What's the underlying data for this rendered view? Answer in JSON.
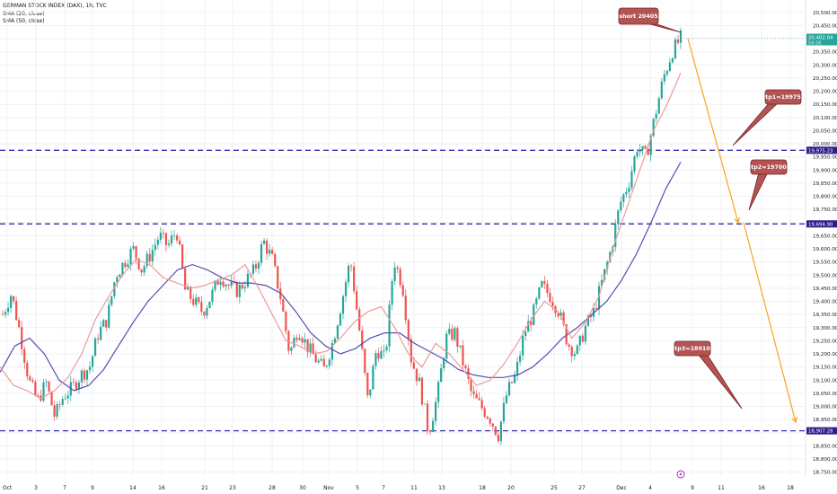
{
  "header": {
    "title": "GERMAN STOCK INDEX (DAX), 1h, TVC",
    "indicator1": "SMA (20, close)",
    "indicator2": "SMA (50, close)"
  },
  "colors": {
    "up": "#26a69a",
    "down": "#ef5350",
    "sma20": "#ef9a9a",
    "sma50": "#5c49b0",
    "level_line": "#3a2db0",
    "arrow": "#f5a623",
    "callout_fill": "#b35454",
    "callout_stroke": "#7a1f1f",
    "price_tag": "#26a69a",
    "level_tag": "#2e1f8a",
    "grid": "#eef0f3"
  },
  "price_tag": {
    "value": "20,402.04",
    "countdown": "59:26"
  },
  "level_tags": [
    "19,975.23",
    "19,694.90",
    "18,907.28"
  ],
  "callouts": {
    "short": "short 20405",
    "tp1": "tp1=19975",
    "tp2": "tp2=19700",
    "tp3": "tp3=18910"
  },
  "event_icon": "lightning-icon",
  "chart_data": {
    "type": "candlestick",
    "yaxis": {
      "ticks": [
        "20,500.00",
        "20,450.00",
        "20,400.00",
        "20,350.00",
        "20,300.00",
        "20,250.00",
        "20,200.00",
        "20,150.00",
        "20,100.00",
        "20,050.00",
        "20,000.00",
        "19,950.00",
        "19,900.00",
        "19,850.00",
        "19,800.00",
        "19,750.00",
        "19,700.00",
        "19,650.00",
        "19,600.00",
        "19,550.00",
        "19,500.00",
        "19,450.00",
        "19,400.00",
        "19,350.00",
        "19,300.00",
        "19,250.00",
        "19,200.00",
        "19,150.00",
        "19,100.00",
        "19,050.00",
        "19,000.00",
        "18,950.00",
        "18,900.00",
        "18,850.00",
        "18,800.00",
        "18,750.00"
      ],
      "range": [
        18735,
        20520
      ]
    },
    "xaxis": {
      "ticks": [
        "Oct",
        "3",
        "7",
        "9",
        "14",
        "16",
        "21",
        "23",
        "28",
        "30",
        "Nov",
        "5",
        "7",
        "11",
        "13",
        "18",
        "20",
        "25",
        "27",
        "Dec",
        "4",
        "9",
        "11",
        "16",
        "18"
      ]
    },
    "levels": [
      19975.23,
      19694.9,
      18907.28
    ],
    "path": [
      19350,
      19430,
      19280,
      19100,
      19020,
      19090,
      18960,
      19040,
      19070,
      19120,
      19150,
      19280,
      19330,
      19500,
      19550,
      19600,
      19520,
      19580,
      19650,
      19610,
      19670,
      19440,
      19400,
      19360,
      19420,
      19500,
      19460,
      19440,
      19480,
      19520,
      19630,
      19560,
      19410,
      19200,
      19300,
      19230,
      19180,
      19140,
      19250,
      19400,
      19560,
      19300,
      19020,
      19220,
      19180,
      19560,
      19460,
      19180,
      19080,
      18900,
      19040,
      19260,
      19280,
      19160,
      19040,
      19000,
      18960,
      18890,
      19050,
      19120,
      19280,
      19350,
      19460,
      19420,
      19360,
      19240,
      19200,
      19300,
      19360,
      19480,
      19600,
      19770,
      19850,
      19990,
      19950,
      20100,
      20250,
      20350,
      20402
    ],
    "sma20_path": [
      19150,
      19080,
      19060,
      19030,
      19060,
      19110,
      19200,
      19330,
      19420,
      19500,
      19560,
      19540,
      19490,
      19470,
      19450,
      19460,
      19480,
      19500,
      19540,
      19450,
      19350,
      19250,
      19230,
      19200,
      19210,
      19260,
      19320,
      19360,
      19380,
      19300,
      19200,
      19150,
      19240,
      19200,
      19140,
      19080,
      19100,
      19160,
      19240,
      19330,
      19400,
      19360,
      19260,
      19320,
      19420,
      19600,
      19750,
      19900,
      20050,
      20150,
      20270
    ],
    "sma50_path": [
      19130,
      19230,
      19260,
      19200,
      19100,
      19060,
      19080,
      19140,
      19230,
      19320,
      19400,
      19460,
      19520,
      19540,
      19520,
      19490,
      19470,
      19470,
      19460,
      19430,
      19360,
      19280,
      19230,
      19200,
      19220,
      19260,
      19280,
      19280,
      19240,
      19210,
      19180,
      19140,
      19120,
      19110,
      19110,
      19120,
      19150,
      19200,
      19260,
      19300,
      19350,
      19400,
      19480,
      19580,
      19700,
      19830,
      19930
    ],
    "arrows": [
      {
        "from": 20400,
        "to": 19700
      },
      {
        "from": 19700,
        "to": 18940
      }
    ]
  }
}
